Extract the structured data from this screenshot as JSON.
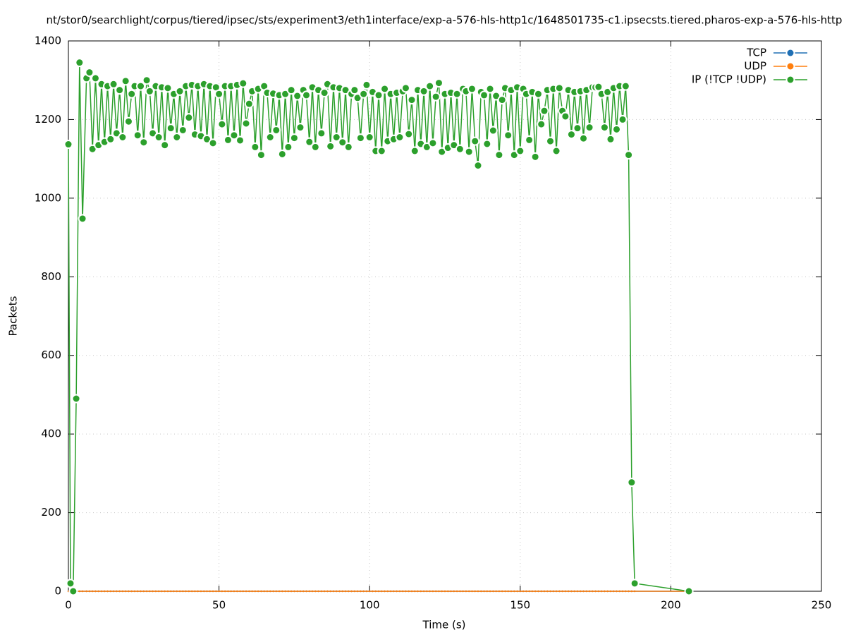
{
  "chart_data": {
    "type": "line",
    "title": "nt/stor0/searchlight/corpus/tiered/ipsec/sts/experiment3/eth1interface/exp-a-576-hls-http1c/1648501735-c1.ipsecsts.tiered.pharos-exp-a-576-hls-http",
    "xlabel": "Time (s)",
    "ylabel": "Packets",
    "xlim": [
      0,
      250
    ],
    "xticks": [
      0,
      50,
      100,
      150,
      200,
      250
    ],
    "ylim": [
      0,
      1400
    ],
    "yticks": [
      0,
      200,
      400,
      600,
      800,
      1000,
      1200,
      1400
    ],
    "grid": true,
    "legend": "top-right",
    "x": [
      0,
      0.7,
      1.6,
      2.6,
      3.7,
      4.7,
      6,
      7,
      8,
      9,
      10,
      11,
      12,
      13,
      14,
      15,
      16,
      17,
      18,
      19,
      20,
      21,
      22,
      23,
      24,
      25,
      26,
      27,
      28,
      29,
      30,
      31,
      32,
      33,
      34,
      35,
      36,
      37,
      38,
      39,
      40,
      41,
      42,
      43,
      44,
      45,
      46,
      47,
      48,
      49,
      50,
      51,
      52,
      53,
      54,
      55,
      56,
      57,
      58,
      59,
      60,
      61,
      62,
      63,
      64,
      65,
      66,
      67,
      68,
      69,
      70,
      71,
      72,
      73,
      74,
      75,
      76,
      77,
      78,
      79,
      80,
      81,
      82,
      83,
      84,
      85,
      86,
      87,
      88,
      89,
      90,
      91,
      92,
      93,
      94,
      95,
      96,
      97,
      98,
      99,
      100,
      101,
      102,
      103,
      104,
      105,
      106,
      107,
      108,
      109,
      110,
      111,
      112,
      113,
      114,
      115,
      116,
      117,
      118,
      119,
      120,
      121,
      122,
      123,
      124,
      125,
      126,
      127,
      128,
      129,
      130,
      131,
      132,
      133,
      134,
      135,
      136,
      137,
      138,
      139,
      140,
      141,
      142,
      143,
      144,
      145,
      146,
      147,
      148,
      149,
      150,
      151,
      152,
      153,
      154,
      155,
      156,
      157,
      158,
      159,
      160,
      161,
      162,
      163,
      164,
      165,
      166,
      167,
      168,
      169,
      170,
      171,
      172,
      173,
      174,
      175,
      176,
      177,
      178,
      179,
      180,
      181,
      182,
      183,
      184,
      185,
      186,
      187,
      188,
      206
    ],
    "series": [
      {
        "name": "TCP",
        "color": "#1f6fb4",
        "values": [
          0,
          0,
          0,
          0,
          0,
          0,
          0,
          0,
          0,
          0,
          0,
          0,
          0,
          0,
          0,
          0,
          0,
          0,
          0,
          0,
          0,
          0,
          0,
          0,
          0,
          0,
          0,
          0,
          0,
          0,
          0,
          0,
          0,
          0,
          0,
          0,
          0,
          0,
          0,
          0,
          0,
          0,
          0,
          0,
          0,
          0,
          0,
          0,
          0,
          0,
          0,
          0,
          0,
          0,
          0,
          0,
          0,
          0,
          0,
          0,
          0,
          0,
          0,
          0,
          0,
          0,
          0,
          0,
          0,
          0,
          0,
          0,
          0,
          0,
          0,
          0,
          0,
          0,
          0,
          0,
          0,
          0,
          0,
          0,
          0,
          0,
          0,
          0,
          0,
          0,
          0,
          0,
          0,
          0,
          0,
          0,
          0,
          0,
          0,
          0,
          0,
          0,
          0,
          0,
          0,
          0,
          0,
          0,
          0,
          0,
          0,
          0,
          0,
          0,
          0,
          0,
          0,
          0,
          0,
          0,
          0,
          0,
          0,
          0,
          0,
          0,
          0,
          0,
          0,
          0,
          0,
          0,
          0,
          0,
          0,
          0,
          0,
          0,
          0,
          0,
          0,
          0,
          0,
          0,
          0,
          0,
          0,
          0,
          0,
          0,
          0,
          0,
          0,
          0,
          0,
          0,
          0,
          0,
          0,
          0,
          0,
          0,
          0,
          0,
          0,
          0,
          0,
          0,
          0,
          0,
          0,
          0,
          0,
          0,
          0,
          0,
          0,
          0,
          0,
          0,
          0,
          0,
          0,
          0,
          0,
          0,
          0,
          0,
          0,
          0
        ]
      },
      {
        "name": "UDP",
        "color": "#ff7f0e",
        "values": [
          0,
          0,
          0,
          0,
          0,
          0,
          0,
          0,
          0,
          0,
          0,
          0,
          0,
          0,
          0,
          0,
          0,
          0,
          0,
          0,
          0,
          0,
          0,
          0,
          0,
          0,
          0,
          0,
          0,
          0,
          0,
          0,
          0,
          0,
          0,
          0,
          0,
          0,
          0,
          0,
          0,
          0,
          0,
          0,
          0,
          0,
          0,
          0,
          0,
          0,
          0,
          0,
          0,
          0,
          0,
          0,
          0,
          0,
          0,
          0,
          0,
          0,
          0,
          0,
          0,
          0,
          0,
          0,
          0,
          0,
          0,
          0,
          0,
          0,
          0,
          0,
          0,
          0,
          0,
          0,
          0,
          0,
          0,
          0,
          0,
          0,
          0,
          0,
          0,
          0,
          0,
          0,
          0,
          0,
          0,
          0,
          0,
          0,
          0,
          0,
          0,
          0,
          0,
          0,
          0,
          0,
          0,
          0,
          0,
          0,
          0,
          0,
          0,
          0,
          0,
          0,
          0,
          0,
          0,
          0,
          0,
          0,
          0,
          0,
          0,
          0,
          0,
          0,
          0,
          0,
          0,
          0,
          0,
          0,
          0,
          0,
          0,
          0,
          0,
          0,
          0,
          0,
          0,
          0,
          0,
          0,
          0,
          0,
          0,
          0,
          0,
          0,
          0,
          0,
          0,
          0,
          0,
          0,
          0,
          0,
          0,
          0,
          0,
          0,
          0,
          0,
          0,
          0,
          0,
          0,
          0,
          0,
          0,
          0,
          0,
          0,
          0,
          0,
          0,
          0,
          0,
          0,
          0,
          0,
          0,
          0,
          0,
          0,
          0,
          0
        ]
      },
      {
        "name": "IP (!TCP  !UDP)",
        "color": "#2ca02c",
        "values": [
          1137,
          20,
          0,
          490,
          1345,
          948,
          1305,
          1320,
          1125,
          1305,
          1135,
          1290,
          1143,
          1285,
          1150,
          1290,
          1165,
          1275,
          1155,
          1298,
          1195,
          1265,
          1285,
          1160,
          1285,
          1142,
          1300,
          1272,
          1165,
          1285,
          1155,
          1282,
          1135,
          1280,
          1178,
          1265,
          1155,
          1272,
          1173,
          1285,
          1205,
          1288,
          1162,
          1285,
          1158,
          1290,
          1150,
          1285,
          1140,
          1282,
          1265,
          1188,
          1285,
          1148,
          1285,
          1160,
          1288,
          1147,
          1292,
          1190,
          1240,
          1272,
          1130,
          1278,
          1110,
          1285,
          1268,
          1155,
          1266,
          1173,
          1262,
          1112,
          1265,
          1130,
          1275,
          1153,
          1260,
          1180,
          1275,
          1262,
          1143,
          1282,
          1130,
          1275,
          1165,
          1268,
          1290,
          1132,
          1282,
          1155,
          1280,
          1142,
          1275,
          1130,
          1265,
          1275,
          1255,
          1153,
          1265,
          1288,
          1155,
          1270,
          1120,
          1262,
          1120,
          1278,
          1145,
          1265,
          1150,
          1268,
          1155,
          1272,
          1280,
          1163,
          1250,
          1120,
          1275,
          1138,
          1272,
          1130,
          1285,
          1140,
          1258,
          1293,
          1118,
          1265,
          1128,
          1268,
          1135,
          1265,
          1125,
          1278,
          1272,
          1118,
          1278,
          1145,
          1083,
          1270,
          1262,
          1138,
          1278,
          1172,
          1260,
          1110,
          1250,
          1280,
          1160,
          1275,
          1110,
          1282,
          1120,
          1278,
          1265,
          1148,
          1270,
          1105,
          1265,
          1188,
          1222,
          1275,
          1145,
          1278,
          1120,
          1280,
          1222,
          1208,
          1275,
          1162,
          1270,
          1178,
          1272,
          1152,
          1275,
          1180,
          1282,
          1282,
          1283,
          1265,
          1180,
          1270,
          1150,
          1280,
          1175,
          1285,
          1200,
          1285,
          1110,
          277,
          20,
          0
        ]
      }
    ]
  }
}
